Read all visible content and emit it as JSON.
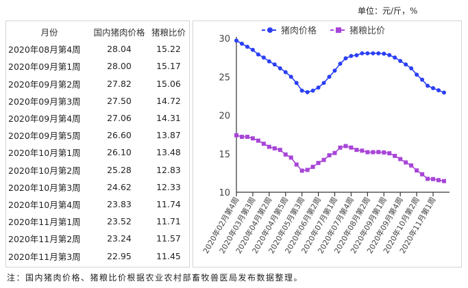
{
  "unit_label": "单位：元/斤，%",
  "table": {
    "headers": [
      "月份",
      "国内猪肉价格",
      "猪粮比价"
    ],
    "rows": [
      [
        "2020年08月第4周",
        "28.04",
        "15.22"
      ],
      [
        "2020年09月第1周",
        "28.00",
        "15.17"
      ],
      [
        "2020年09月第2周",
        "27.82",
        "15.06"
      ],
      [
        "2020年09月第3周",
        "27.50",
        "14.72"
      ],
      [
        "2020年09月第4周",
        "27.06",
        "14.31"
      ],
      [
        "2020年09月第5周",
        "26.60",
        "13.87"
      ],
      [
        "2020年10月第1周",
        "26.10",
        "13.48"
      ],
      [
        "2020年10月第2周",
        "25.28",
        "12.83"
      ],
      [
        "2020年10月第3周",
        "24.62",
        "12.33"
      ],
      [
        "2020年10月第4周",
        "23.83",
        "11.74"
      ],
      [
        "2020年11月第1周",
        "23.52",
        "11.71"
      ],
      [
        "2020年11月第2周",
        "23.24",
        "11.57"
      ],
      [
        "2020年11月第3周",
        "22.95",
        "11.45"
      ]
    ]
  },
  "chart_data": {
    "type": "line",
    "ylim": [
      10,
      30
    ],
    "yticks": [
      10,
      15,
      20,
      25,
      30
    ],
    "grid": false,
    "legend_placement": "top",
    "xtick_labels": [
      "2020年02月第4周",
      "2020年03月第3周",
      "2020年04月第2周",
      "2020年04月第5周",
      "2020年05月第3周",
      "2020年06月第2周",
      "2020年07月第1周",
      "2020年07月第4周",
      "2020年08月第2周",
      "2020年09月第1周",
      "2020年09月第4周",
      "2020年10月第2周",
      "2020年11月第1周"
    ],
    "series": [
      {
        "name": "猪肉价格",
        "color": "#2b3ff5",
        "marker": "circle",
        "values": [
          29.7,
          29.3,
          28.9,
          28.5,
          27.9,
          27.5,
          27.0,
          26.6,
          26.1,
          25.6,
          25.0,
          24.2,
          23.2,
          23.0,
          23.2,
          23.6,
          24.2,
          25.0,
          25.8,
          26.7,
          27.4,
          27.7,
          27.8,
          28.05,
          28.05,
          28.05,
          28.04,
          28.0,
          27.82,
          27.5,
          27.06,
          26.6,
          26.1,
          25.28,
          24.62,
          23.83,
          23.52,
          23.24,
          22.95
        ]
      },
      {
        "name": "猪粮比价",
        "color": "#a845d8",
        "marker": "square",
        "values": [
          17.4,
          17.2,
          17.2,
          17.0,
          16.7,
          16.3,
          15.9,
          15.7,
          15.5,
          14.9,
          14.5,
          13.6,
          12.8,
          12.9,
          13.3,
          13.8,
          14.2,
          14.8,
          15.1,
          15.8,
          16.0,
          15.8,
          15.5,
          15.4,
          15.2,
          15.2,
          15.22,
          15.17,
          15.06,
          14.72,
          14.31,
          13.87,
          13.48,
          12.83,
          12.33,
          11.74,
          11.71,
          11.57,
          11.45
        ]
      }
    ]
  },
  "note": "注：国内猪肉价格、猪粮比价根据农业农村部畜牧兽医局发布数据整理。"
}
